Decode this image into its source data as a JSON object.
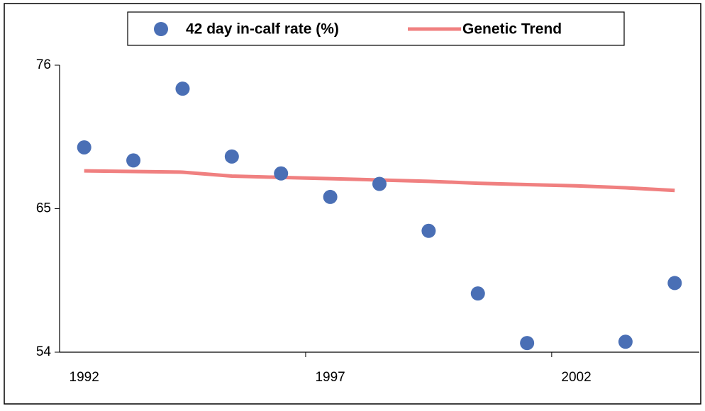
{
  "chart_data": {
    "type": "combo",
    "categories": [
      "1992",
      null,
      null,
      null,
      null,
      "1997",
      null,
      null,
      null,
      null,
      "2002",
      null,
      null
    ],
    "series": [
      {
        "name": "42 day in-calf rate (%)",
        "type": "scatter",
        "color": "#4a6fb5",
        "values": [
          69.7,
          68.7,
          74.2,
          69.0,
          67.7,
          65.9,
          66.9,
          63.3,
          58.5,
          54.7,
          null,
          54.8,
          59.3
        ]
      },
      {
        "name": "Genetic Trend",
        "type": "line",
        "color": "#f08080",
        "values": [
          67.9,
          67.85,
          67.8,
          67.5,
          67.4,
          67.3,
          67.2,
          67.1,
          66.95,
          66.85,
          66.75,
          66.6,
          66.4
        ]
      }
    ],
    "ylim": [
      54,
      76
    ],
    "yticks": [
      54,
      65,
      76
    ],
    "legend": "top"
  }
}
